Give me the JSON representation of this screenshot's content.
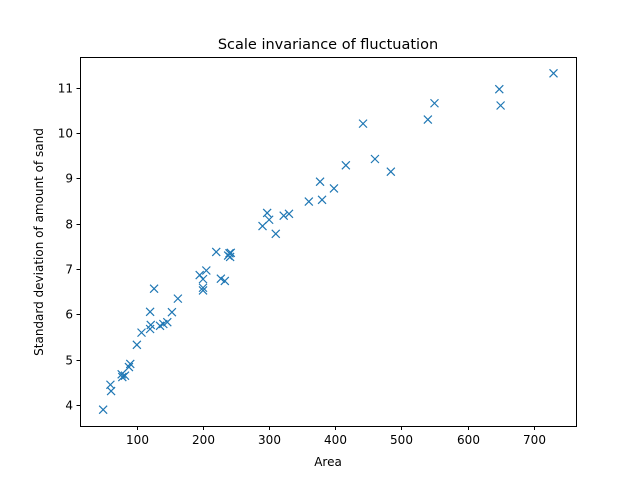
{
  "chart_data": {
    "type": "scatter",
    "title": "Scale invariance of fluctuation",
    "xlabel": "Area",
    "ylabel": "Standard deviation of amount of sand",
    "xlim": [
      14,
      764
    ],
    "ylim": [
      3.54,
      11.68
    ],
    "xticks": [
      100,
      200,
      300,
      400,
      500,
      600,
      700
    ],
    "yticks": [
      4,
      5,
      6,
      7,
      8,
      9,
      10,
      11
    ],
    "marker": "x",
    "color": "#1f77b4",
    "grid": false,
    "series": [
      {
        "name": "",
        "points": [
          [
            49,
            3.9
          ],
          [
            60,
            4.45
          ],
          [
            61,
            4.31
          ],
          [
            77,
            4.68
          ],
          [
            78,
            4.62
          ],
          [
            82,
            4.65
          ],
          [
            88,
            4.84
          ],
          [
            90,
            4.91
          ],
          [
            100,
            5.33
          ],
          [
            107,
            5.6
          ],
          [
            120,
            5.68
          ],
          [
            121,
            5.77
          ],
          [
            120,
            6.06
          ],
          [
            126,
            6.57
          ],
          [
            135,
            5.75
          ],
          [
            140,
            5.79
          ],
          [
            146,
            5.83
          ],
          [
            153,
            6.05
          ],
          [
            162,
            6.35
          ],
          [
            195,
            6.87
          ],
          [
            200,
            6.78
          ],
          [
            200,
            6.59
          ],
          [
            200,
            6.53
          ],
          [
            205,
            6.97
          ],
          [
            220,
            7.38
          ],
          [
            227,
            6.79
          ],
          [
            233,
            6.74
          ],
          [
            238,
            7.3
          ],
          [
            240,
            7.35
          ],
          [
            241,
            7.27
          ],
          [
            242,
            7.36
          ],
          [
            290,
            7.95
          ],
          [
            297,
            8.24
          ],
          [
            300,
            8.09
          ],
          [
            310,
            7.78
          ],
          [
            322,
            8.18
          ],
          [
            330,
            8.22
          ],
          [
            360,
            8.49
          ],
          [
            377,
            8.93
          ],
          [
            380,
            8.53
          ],
          [
            398,
            8.78
          ],
          [
            416,
            9.29
          ],
          [
            442,
            10.21
          ],
          [
            460,
            9.43
          ],
          [
            484,
            9.15
          ],
          [
            540,
            10.3
          ],
          [
            550,
            10.66
          ],
          [
            648,
            10.97
          ],
          [
            650,
            10.61
          ],
          [
            730,
            11.32
          ]
        ]
      }
    ]
  }
}
